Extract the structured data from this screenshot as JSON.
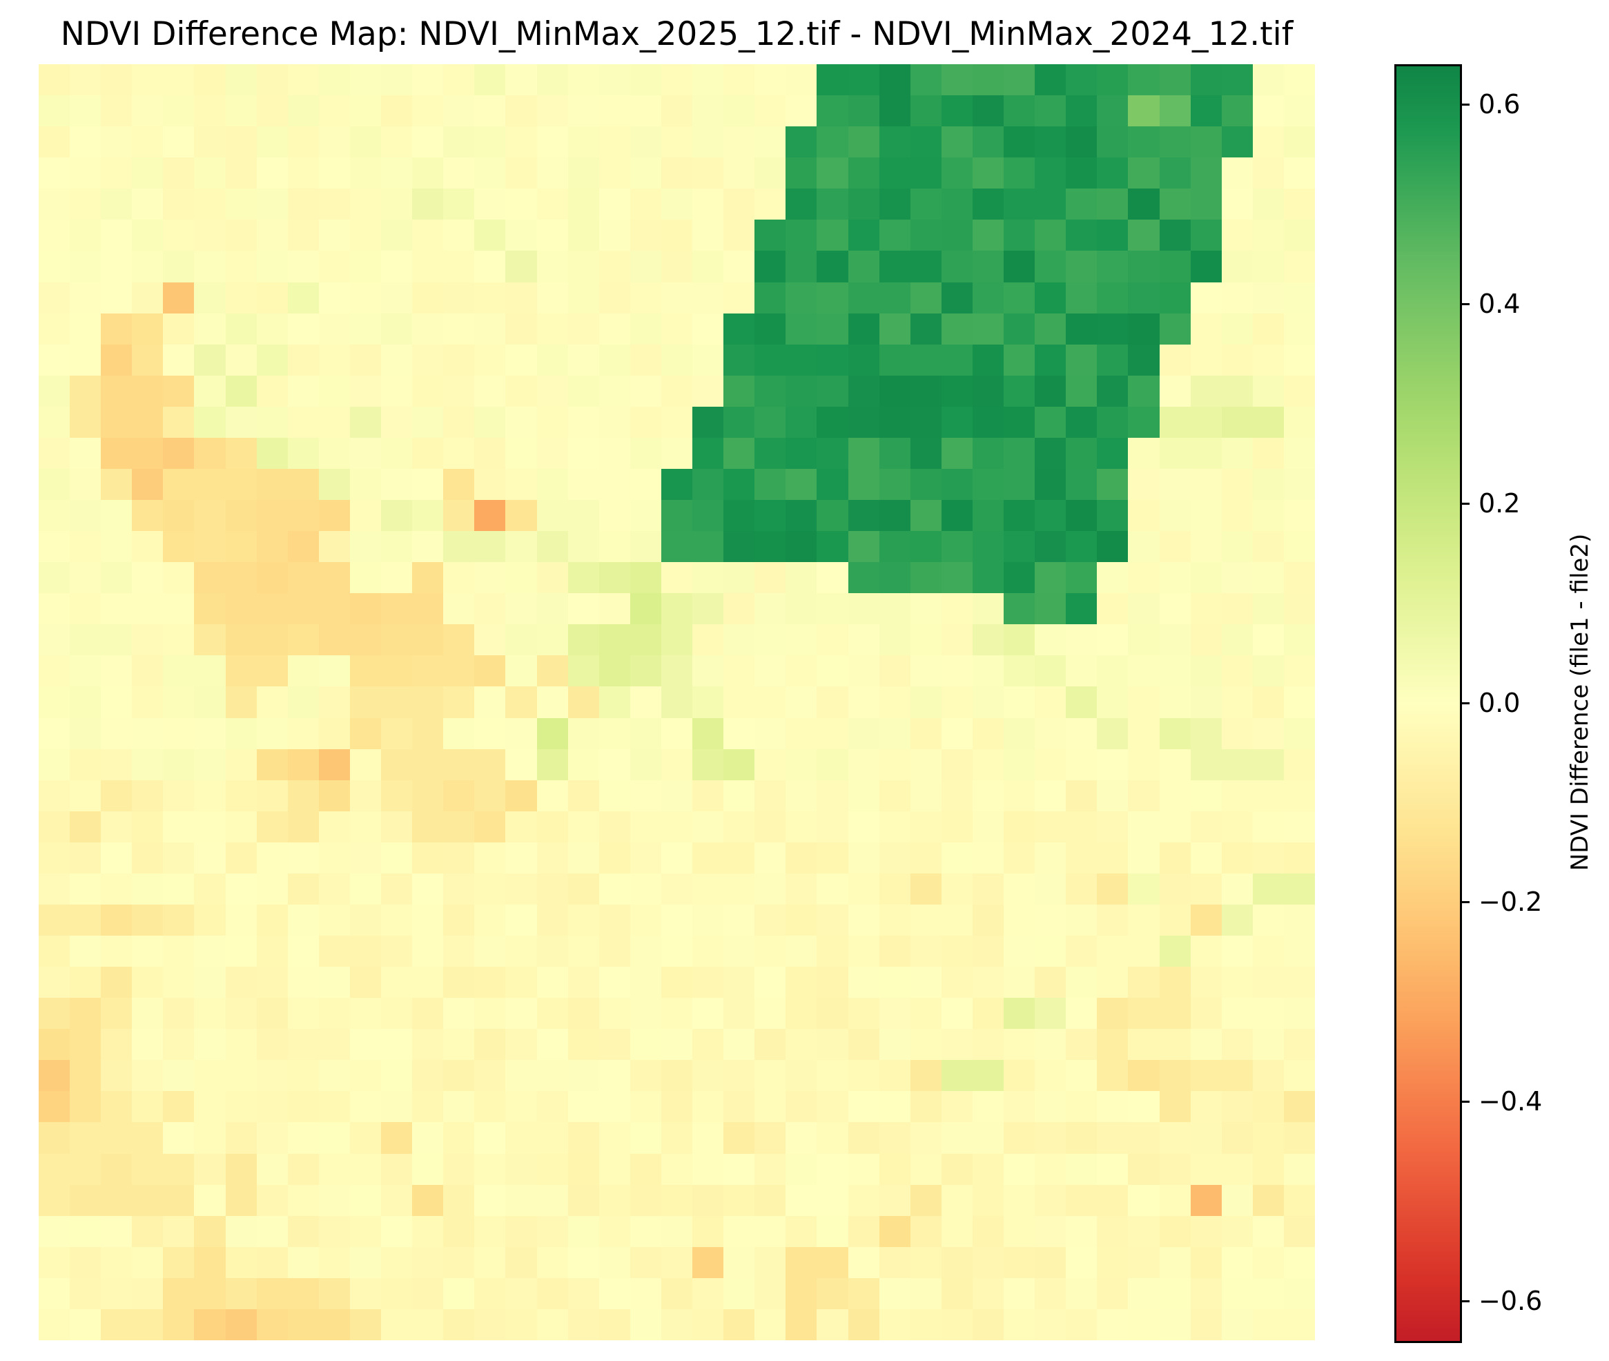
{
  "title": "NDVI Difference Map: NDVI_MinMax_2025_12.tif - NDVI_MinMax_2024_12.tif",
  "colorbar": {
    "label": "NDVI Difference (file1 - file2)",
    "colormap": "RdYlGn",
    "vmin": -0.64,
    "vmax": 0.64,
    "ticks": [
      {
        "value": 0.6,
        "label": "0.6"
      },
      {
        "value": 0.4,
        "label": "0.4"
      },
      {
        "value": 0.2,
        "label": "0.2"
      },
      {
        "value": 0.0,
        "label": "0.0"
      },
      {
        "value": -0.2,
        "label": "−0.2"
      },
      {
        "value": -0.4,
        "label": "−0.4"
      },
      {
        "value": -0.6,
        "label": "−0.6"
      }
    ]
  },
  "chart_data": {
    "type": "heatmap",
    "title": "NDVI Difference Map: NDVI_MinMax_2025_12.tif - NDVI_MinMax_2024_12.tif",
    "xlabel": "",
    "ylabel": "",
    "colorbar_label": "NDVI Difference (file1 - file2)",
    "colormap": "RdYlGn",
    "vmin": -0.64,
    "vmax": 0.64,
    "axes_visible": false,
    "grid": false,
    "rows": 41,
    "cols": 41,
    "green_region_description": "Large positive-change block (≈0.5–0.6) in upper-right, rows 0–17, cols ~20–38",
    "values": []
  }
}
